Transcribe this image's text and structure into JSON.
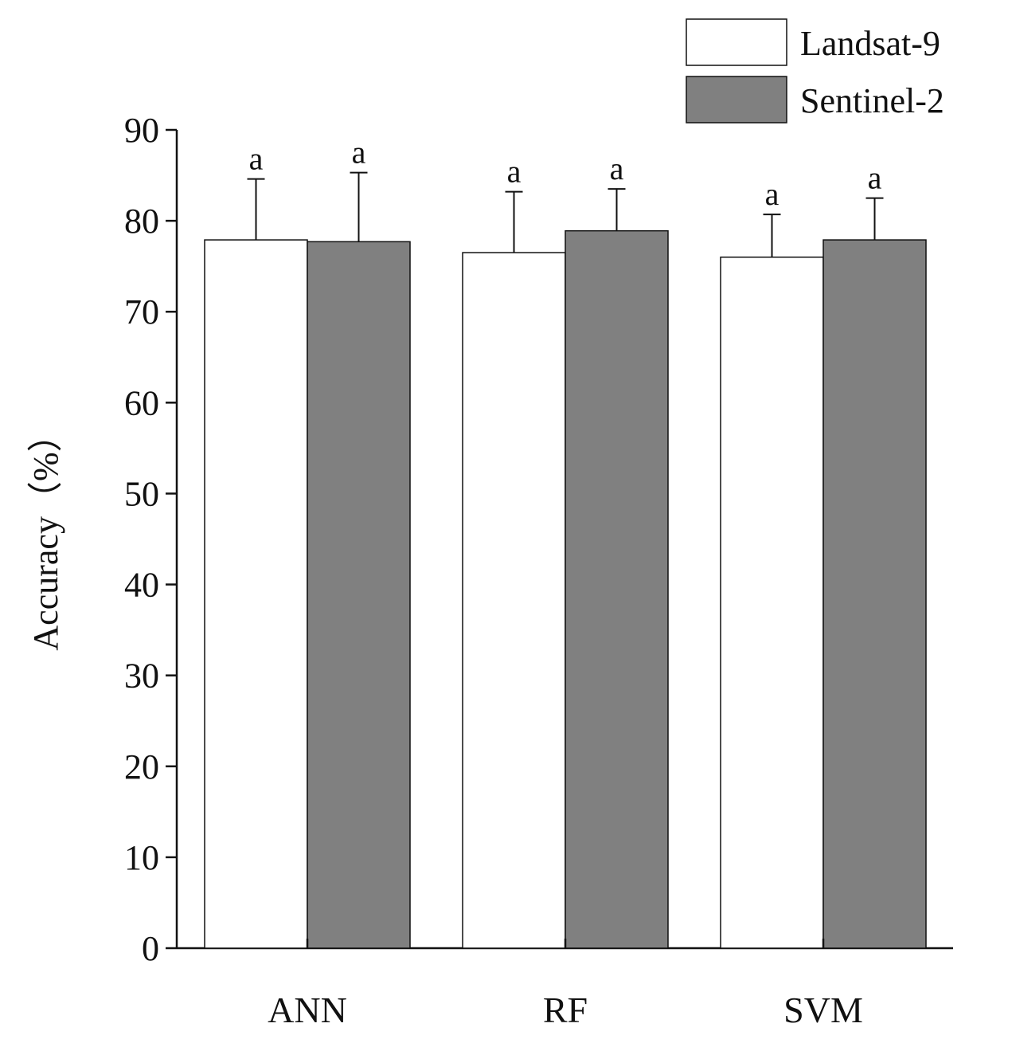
{
  "chart_data": {
    "type": "bar",
    "title": "",
    "xlabel": "",
    "ylabel": "Accuracy（%）",
    "ylim": [
      0,
      90
    ],
    "yticks": [
      0,
      10,
      20,
      30,
      40,
      50,
      60,
      70,
      80,
      90
    ],
    "grid": false,
    "legend_position": "top-right",
    "categories": [
      "ANN",
      "RF",
      "SVM"
    ],
    "series": [
      {
        "name": "Landsat-9",
        "color": "#ffffff",
        "values": [
          77.9,
          76.5,
          76.0
        ],
        "errors": [
          6.7,
          6.7,
          4.7
        ],
        "significance": [
          "a",
          "a",
          "a"
        ]
      },
      {
        "name": "Sentinel-2",
        "color": "#808080",
        "values": [
          77.7,
          78.9,
          77.9
        ],
        "errors": [
          7.6,
          4.6,
          4.6
        ],
        "significance": [
          "a",
          "a",
          "a"
        ]
      }
    ]
  }
}
